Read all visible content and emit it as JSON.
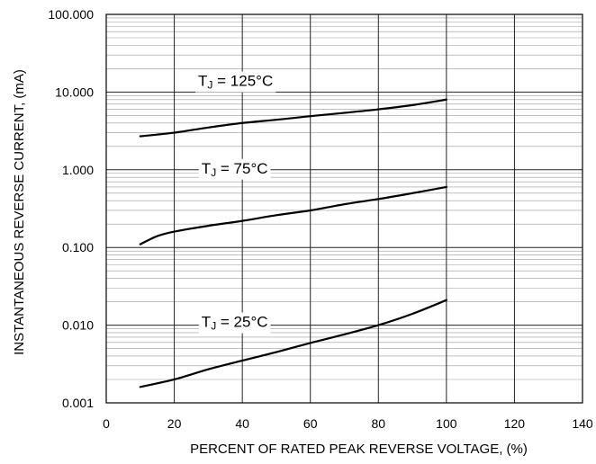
{
  "chart_data": {
    "type": "line",
    "title": "",
    "xlabel": "PERCENT OF RATED PEAK REVERSE VOLTAGE, (%)",
    "ylabel": "INSTANTANEOUS REVERSE CURRENT, (mA)",
    "xlim": [
      0,
      140
    ],
    "ylim": [
      0.001,
      100
    ],
    "yscale": "log",
    "grid": true,
    "legend": "none",
    "x_ticks": [
      "0",
      "20",
      "40",
      "60",
      "80",
      "100",
      "120",
      "140"
    ],
    "y_ticks": [
      "0.001",
      "0.010",
      "0.100",
      "1.000",
      "10.000",
      "100.000"
    ],
    "line_color": "#000000",
    "series": [
      {
        "name": "TJ = 125°C",
        "label_main": "T",
        "label_sub": "J",
        "label_rest": " = 125°C",
        "label_at": [
          27,
          12
        ],
        "x": [
          10,
          20,
          30,
          40,
          50,
          60,
          70,
          80,
          90,
          100
        ],
        "values": [
          2.7,
          3.0,
          3.5,
          4.0,
          4.4,
          4.9,
          5.4,
          6.0,
          6.8,
          8.0
        ]
      },
      {
        "name": "TJ = 75°C",
        "label_main": "T",
        "label_sub": "J",
        "label_rest": " = 75°C",
        "label_at": [
          28,
          0.9
        ],
        "x": [
          10,
          15,
          20,
          30,
          40,
          50,
          60,
          70,
          80,
          90,
          100
        ],
        "values": [
          0.11,
          0.14,
          0.16,
          0.19,
          0.22,
          0.26,
          0.3,
          0.36,
          0.42,
          0.5,
          0.6
        ]
      },
      {
        "name": "TJ = 25°C",
        "label_main": "T",
        "label_sub": "J",
        "label_rest": " = 25°C",
        "label_at": [
          28,
          0.0095
        ],
        "x": [
          10,
          20,
          30,
          40,
          50,
          60,
          70,
          80,
          90,
          100
        ],
        "values": [
          0.0016,
          0.002,
          0.0027,
          0.0035,
          0.0045,
          0.0059,
          0.0076,
          0.01,
          0.014,
          0.021
        ]
      }
    ]
  }
}
